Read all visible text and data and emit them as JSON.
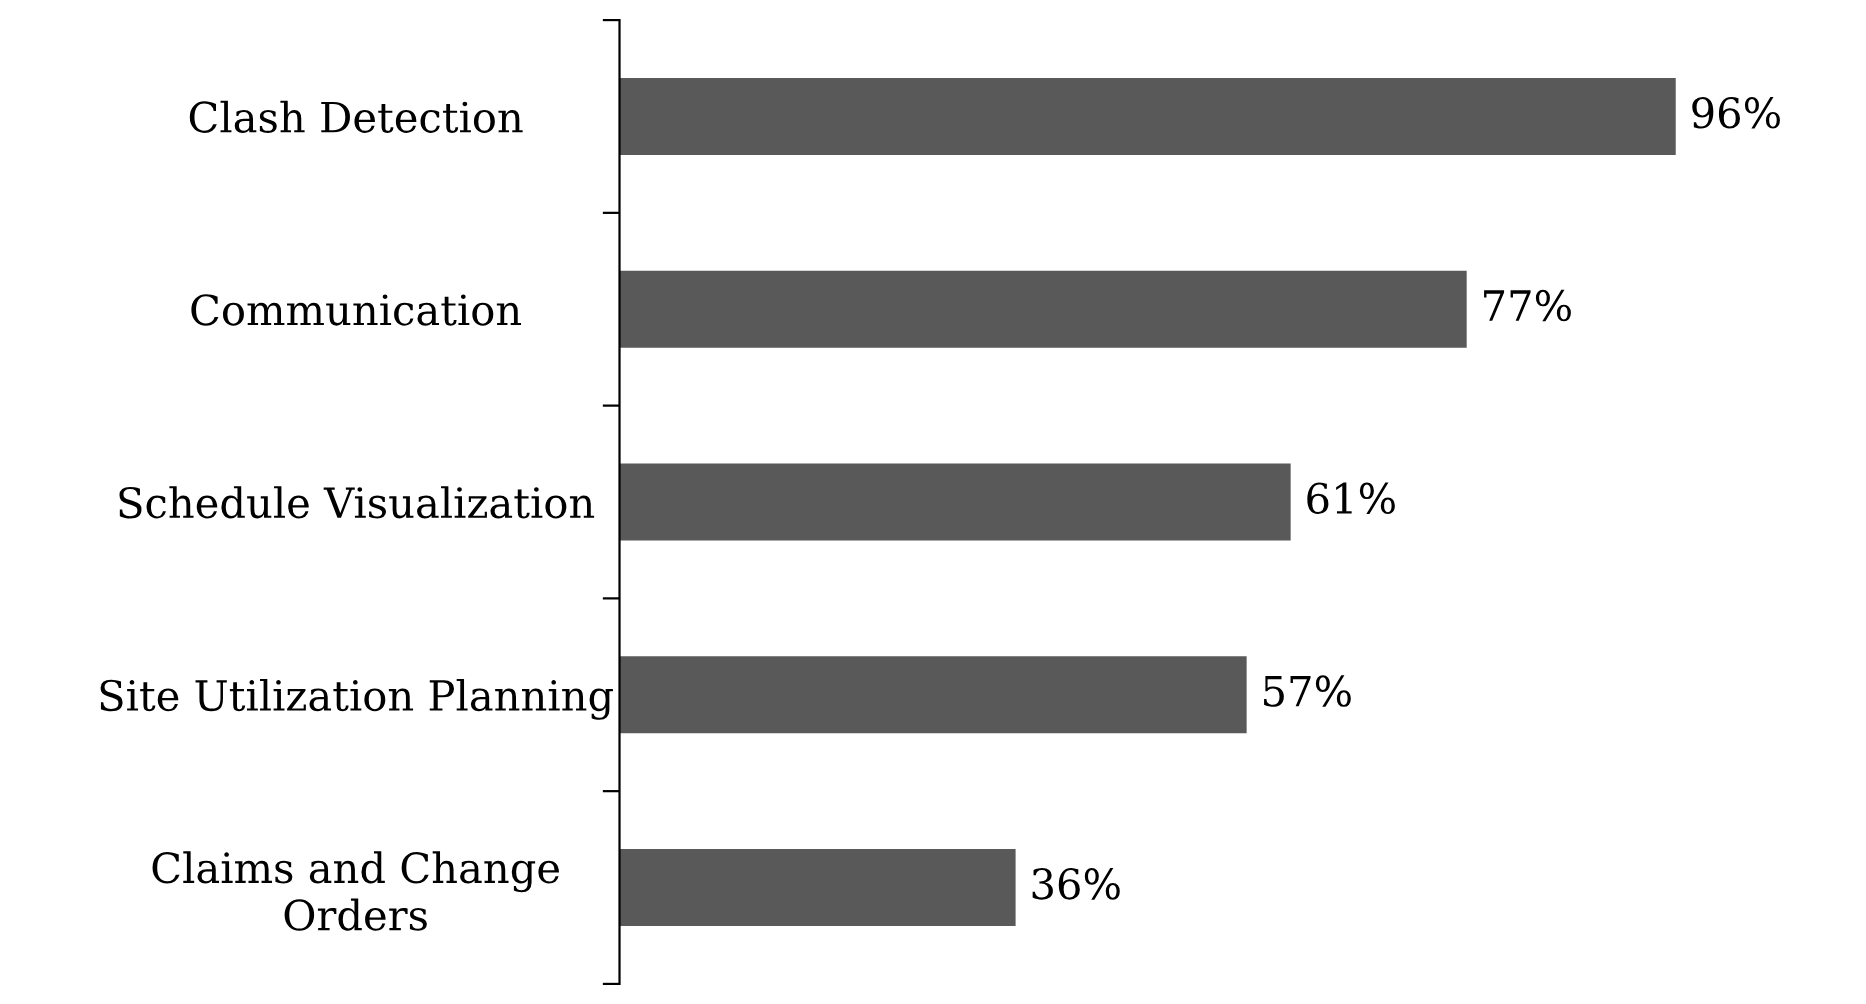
{
  "chart_data": {
    "type": "bar",
    "orientation": "horizontal",
    "categories": [
      "Clash Detection",
      "Communication",
      "Schedule Visualization",
      "Site Utilization Planning",
      "Claims and Change\nOrders"
    ],
    "values": [
      96,
      77,
      61,
      57,
      36
    ],
    "value_labels": [
      "96%",
      "77%",
      "61%",
      "57%",
      "36%"
    ],
    "color": "#595959",
    "grid": false,
    "legend": false
  }
}
